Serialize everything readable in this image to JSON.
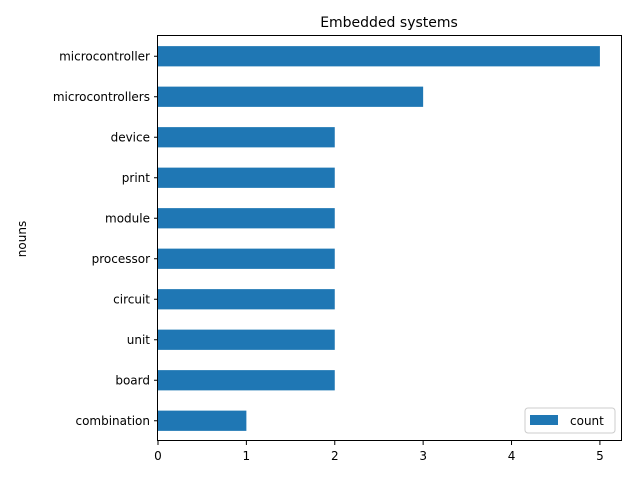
{
  "chart_data": {
    "type": "bar",
    "orientation": "horizontal",
    "title": "Embedded systems",
    "ylabel": "nouns",
    "xlabel": "",
    "categories": [
      "microcontroller",
      "microcontrollers",
      "device",
      "print",
      "module",
      "processor",
      "circuit",
      "unit",
      "board",
      "combination"
    ],
    "series": [
      {
        "name": "count",
        "values": [
          5,
          3,
          2,
          2,
          2,
          2,
          2,
          2,
          2,
          1
        ]
      }
    ],
    "xlim": [
      0,
      5.25
    ],
    "xticks": [
      0,
      1,
      2,
      3,
      4,
      5
    ],
    "grid": false,
    "legend_position": "lower-right",
    "bar_color": "#1f77b4"
  }
}
